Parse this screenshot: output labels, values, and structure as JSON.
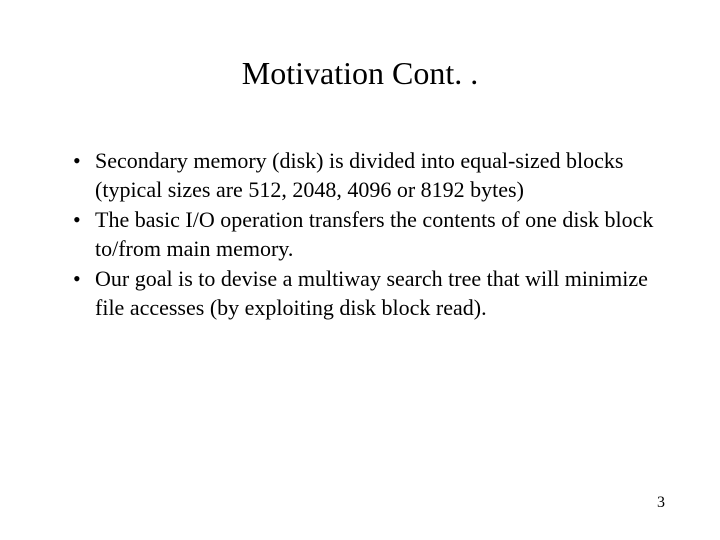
{
  "slide": {
    "title": "Motivation Cont. .",
    "bullets": [
      "Secondary memory (disk) is divided into equal-sized blocks (typical  sizes are 512, 2048, 4096 or 8192 bytes)",
      "The basic I/O operation transfers the contents of one disk block  to/from main memory.",
      "Our goal is to devise a multiway search tree that will minimize file  accesses (by exploiting disk block read)."
    ],
    "page_number": "3",
    "colors": {
      "background": "#ffffff",
      "text": "#000000"
    },
    "typography": {
      "font_family": "Times New Roman",
      "title_fontsize": 32,
      "body_fontsize": 22,
      "page_number_fontsize": 16
    }
  }
}
